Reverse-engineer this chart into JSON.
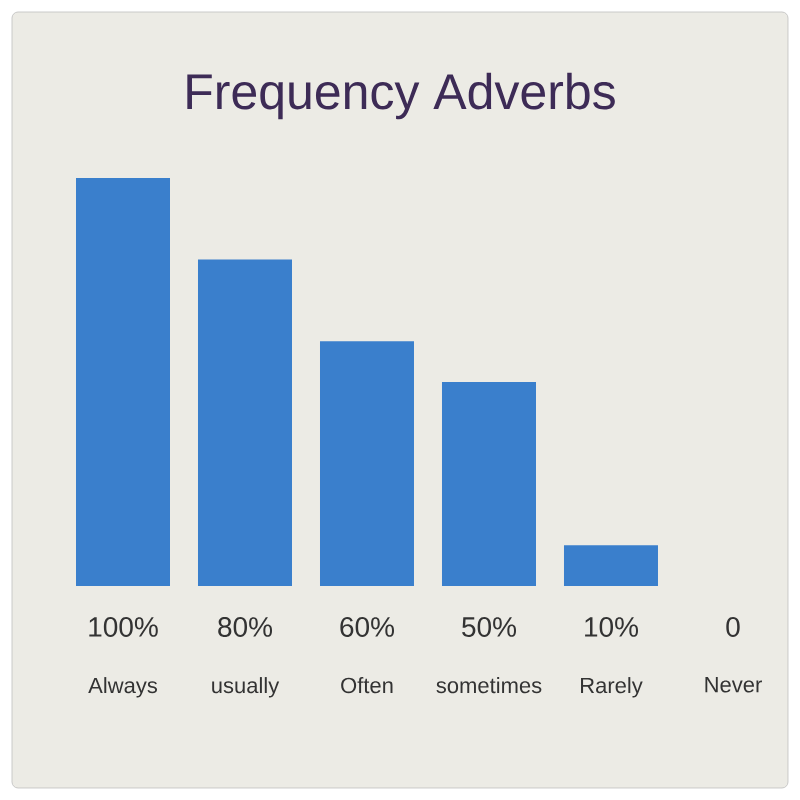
{
  "chart_data": {
    "type": "bar",
    "title": "Frequency Adverbs",
    "categories": [
      "Always",
      "usually",
      "Often",
      "sometimes",
      "Rarely",
      "Never"
    ],
    "values": [
      100,
      80,
      60,
      50,
      10,
      0
    ],
    "value_labels": [
      "100%",
      "80%",
      "60%",
      "50%",
      "10%",
      "0"
    ],
    "color": "#3a7fcc"
  }
}
